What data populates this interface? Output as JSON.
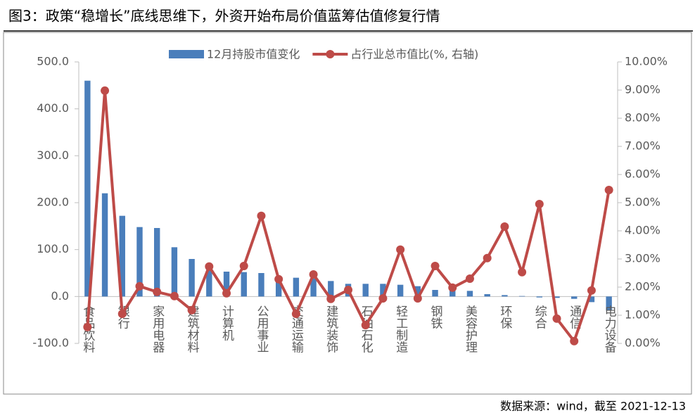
{
  "chart_data": {
    "type": "bar_line",
    "title": "图3：政策“稳增长”底线思维下，外资开始布局价值蓝筹估值修复行情",
    "source": "数据来源：wind，截至 2021-12-13",
    "categories": [
      "食品饮料",
      null,
      "银行",
      null,
      "家用电器",
      null,
      "建筑材料",
      null,
      "计算机",
      null,
      "公用事业",
      null,
      "交通运输",
      null,
      "建筑装饰",
      null,
      "石油石化",
      null,
      "轻工制造",
      null,
      "钢铁",
      null,
      "美容护理",
      null,
      "环保",
      null,
      "综合",
      null,
      "通信",
      null,
      "电力设备"
    ],
    "series": [
      {
        "name": "12月持股市值变化",
        "color": "#4a7ebb",
        "type": "bar",
        "values": [
          460,
          220,
          172,
          148,
          146,
          105,
          80,
          65,
          53,
          52,
          50,
          42,
          40,
          38,
          33,
          27,
          27,
          27,
          25,
          22,
          14,
          14,
          12,
          5,
          3,
          1,
          -2,
          -3,
          -5,
          -12,
          -30
        ]
      },
      {
        "name": "占行业总市值比(%, 右轴)",
        "color": "#be4b48",
        "type": "line",
        "axis": "y2",
        "values": [
          0.58,
          8.98,
          1.05,
          2.03,
          1.83,
          1.68,
          1.18,
          2.73,
          1.78,
          2.75,
          4.53,
          2.28,
          1.05,
          2.45,
          1.58,
          1.9,
          0.65,
          1.6,
          3.33,
          1.6,
          2.75,
          1.98,
          2.3,
          3.03,
          4.15,
          2.53,
          4.95,
          0.88,
          0.08,
          1.88,
          5.45
        ]
      }
    ],
    "ylim": [
      -100,
      500
    ],
    "yticks": [
      {
        "value": -100,
        "label": "-100.0"
      },
      {
        "value": 0,
        "label": "0.0"
      },
      {
        "value": 100,
        "label": "100.0"
      },
      {
        "value": 200,
        "label": "200.0"
      },
      {
        "value": 300,
        "label": "300.0"
      },
      {
        "value": 400,
        "label": "400.0"
      },
      {
        "value": 500,
        "label": "500.0"
      }
    ],
    "y2lim": [
      0,
      10
    ],
    "y2ticks": [
      {
        "value": 0,
        "label": "0.00%"
      },
      {
        "value": 1,
        "label": "1.00%"
      },
      {
        "value": 2,
        "label": "2.00%"
      },
      {
        "value": 3,
        "label": "3.00%"
      },
      {
        "value": 4,
        "label": "4.00%"
      },
      {
        "value": 5,
        "label": "5.00%"
      },
      {
        "value": 6,
        "label": "6.00%"
      },
      {
        "value": 7,
        "label": "7.00%"
      },
      {
        "value": 8,
        "label": "8.00%"
      },
      {
        "value": 9,
        "label": "9.00%"
      },
      {
        "value": 10,
        "label": "10.00%"
      }
    ],
    "legend": "top"
  }
}
